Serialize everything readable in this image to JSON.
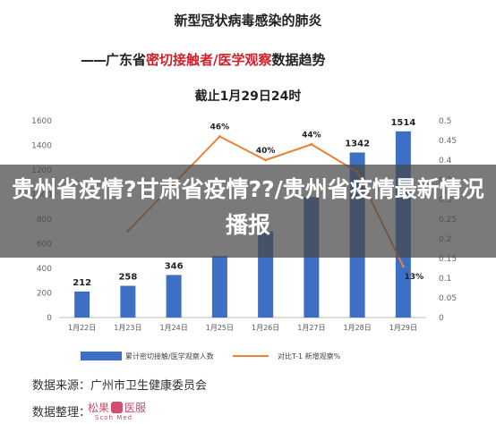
{
  "header": {
    "title": "新型冠状病毒感染的肺炎",
    "subtitle_dash": "——",
    "subtitle_prefix": "广东省",
    "subtitle_highlight": "密切接触者/医学观察",
    "subtitle_suffix": "数据趋势",
    "date_line": "截止1月29日24时"
  },
  "overlay": {
    "text": "贵州省疫情?甘肃省疫情??/贵州省疫情最新情况播报"
  },
  "footer": {
    "source_label": "数据来源：",
    "source_value": "广州市卫生健康委员会",
    "organizer_label": "数据整理：",
    "logo_text_1": "松果",
    "logo_text_2": "医服",
    "logo_sub": "Scoh Med"
  },
  "colors": {
    "bar": "#3d6fc4",
    "line": "#e8833a",
    "title_red": "#d0202a"
  },
  "chart_data": {
    "type": "bar",
    "categories": [
      "1月22日",
      "1月23日",
      "1月24日",
      "1月25日",
      "1月26日",
      "1月27日",
      "1月28日",
      "1月29日"
    ],
    "series": [
      {
        "name": "累计密切接触/医学观察人数",
        "type": "bar",
        "axis": "left",
        "values": [
          212,
          258,
          346,
          500,
          700,
          980,
          1342,
          1514
        ],
        "labels": [
          "212",
          "258",
          "346",
          "",
          "",
          "",
          "1342",
          "1514"
        ]
      },
      {
        "name": "对比T-1 新增观察%",
        "type": "line",
        "axis": "right",
        "values": [
          null,
          0.22,
          0.34,
          0.46,
          0.4,
          0.44,
          0.37,
          0.13
        ],
        "labels": [
          "",
          "",
          "",
          "46%",
          "40%",
          "44%",
          "",
          "13%"
        ]
      }
    ],
    "y_left": {
      "ylim": [
        0,
        1600
      ],
      "ticks": [
        "0",
        "200",
        "400",
        "600",
        "800",
        "1000",
        "1200",
        "1400",
        "1600"
      ]
    },
    "y_right": {
      "ylim": [
        0,
        0.5
      ],
      "ticks": [
        "0",
        "0.05",
        "0.1",
        "0.15",
        "0.2",
        "0.25",
        "0.3",
        "0.35",
        "0.4",
        "0.45",
        "0.5"
      ]
    },
    "grid": false,
    "legend": "bottom"
  }
}
